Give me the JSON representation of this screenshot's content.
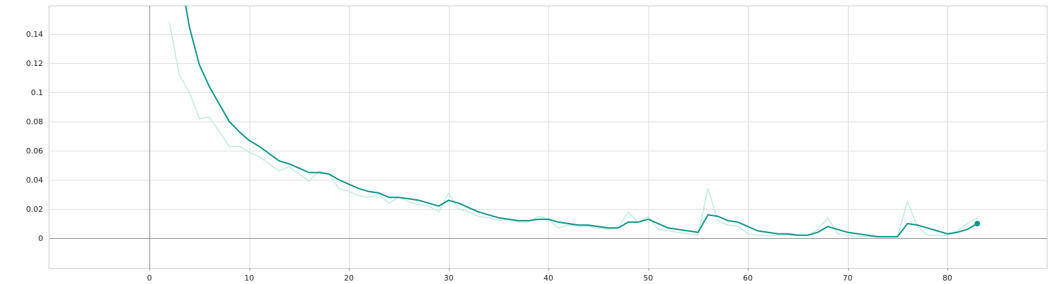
{
  "chart_data": {
    "type": "line",
    "title": "",
    "xlabel": "",
    "ylabel": "",
    "xlim": [
      -10,
      100
    ],
    "ylim": [
      -0.02,
      0.16
    ],
    "x_ticks": [
      0,
      10,
      20,
      30,
      40,
      50,
      60,
      70,
      80
    ],
    "x_tick_labels": [
      "0",
      "10",
      "20",
      "30",
      "40",
      "50",
      "60",
      "70",
      "80"
    ],
    "y_ticks": [
      0,
      0.02,
      0.04,
      0.06,
      0.08,
      0.1,
      0.12,
      0.14
    ],
    "y_tick_labels": [
      "0",
      "0.02",
      "0.04",
      "0.06",
      "0.08",
      "0.1",
      "0.12",
      "0.14"
    ],
    "grid": true,
    "colors": {
      "smoothed": "#0b9484",
      "raw": "#c2ebe3",
      "grid": "#dddddd",
      "zero_axis": "#8c8c8c"
    },
    "series": [
      {
        "role": "raw",
        "x": [
          2,
          3,
          4,
          5,
          6,
          7,
          8,
          9,
          10,
          11,
          12,
          13,
          14,
          15,
          16,
          17,
          18,
          19,
          20,
          21,
          22,
          23,
          24,
          25,
          26,
          27,
          28,
          29,
          30,
          31,
          32,
          33,
          34,
          35,
          36,
          37,
          38,
          39,
          40,
          41,
          42,
          43,
          44,
          45,
          46,
          47,
          48,
          49,
          50,
          51,
          52,
          53,
          54,
          55,
          56,
          57,
          58,
          59,
          60,
          61,
          62,
          63,
          64,
          65,
          66,
          67,
          68,
          69,
          70,
          71,
          72,
          73,
          74,
          75,
          76,
          77,
          78,
          79,
          80,
          81,
          82,
          83
        ],
        "y": [
          0.148,
          0.112,
          0.1,
          0.082,
          0.083,
          0.073,
          0.063,
          0.063,
          0.059,
          0.056,
          0.051,
          0.046,
          0.049,
          0.044,
          0.039,
          0.046,
          0.044,
          0.034,
          0.032,
          0.029,
          0.028,
          0.03,
          0.024,
          0.028,
          0.025,
          0.023,
          0.022,
          0.018,
          0.031,
          0.02,
          0.018,
          0.015,
          0.014,
          0.012,
          0.013,
          0.011,
          0.011,
          0.015,
          0.013,
          0.007,
          0.009,
          0.008,
          0.008,
          0.007,
          0.006,
          0.007,
          0.018,
          0.011,
          0.015,
          0.006,
          0.005,
          0.004,
          0.003,
          0.002,
          0.034,
          0.012,
          0.009,
          0.008,
          0.003,
          0.002,
          0.002,
          0.002,
          0.002,
          0.002,
          0.002,
          0.006,
          0.014,
          0.003,
          0.002,
          0.001,
          0.001,
          0.001,
          0.001,
          0.001,
          0.025,
          0.008,
          0.002,
          0.002,
          0.002,
          0.005,
          0.01,
          0.014
        ]
      },
      {
        "role": "smoothed",
        "x": [
          3.5,
          4,
          5,
          6,
          7,
          8,
          9,
          10,
          11,
          12,
          13,
          14,
          15,
          16,
          17,
          18,
          19,
          20,
          21,
          22,
          23,
          24,
          25,
          26,
          27,
          28,
          29,
          30,
          31,
          32,
          33,
          34,
          35,
          36,
          37,
          38,
          39,
          40,
          41,
          42,
          43,
          44,
          45,
          46,
          47,
          48,
          49,
          50,
          51,
          52,
          53,
          54,
          55,
          56,
          57,
          58,
          59,
          60,
          61,
          62,
          63,
          64,
          65,
          66,
          67,
          68,
          69,
          70,
          71,
          72,
          73,
          74,
          75,
          76,
          77,
          78,
          79,
          80,
          81,
          82,
          83
        ],
        "y": [
          0.165,
          0.145,
          0.119,
          0.104,
          0.092,
          0.08,
          0.073,
          0.067,
          0.063,
          0.058,
          0.053,
          0.051,
          0.048,
          0.045,
          0.045,
          0.044,
          0.04,
          0.037,
          0.034,
          0.032,
          0.031,
          0.028,
          0.028,
          0.027,
          0.026,
          0.024,
          0.022,
          0.026,
          0.024,
          0.021,
          0.018,
          0.016,
          0.014,
          0.013,
          0.012,
          0.012,
          0.013,
          0.013,
          0.011,
          0.01,
          0.009,
          0.009,
          0.008,
          0.007,
          0.007,
          0.011,
          0.011,
          0.013,
          0.01,
          0.007,
          0.006,
          0.005,
          0.004,
          0.016,
          0.015,
          0.012,
          0.011,
          0.008,
          0.005,
          0.004,
          0.003,
          0.003,
          0.002,
          0.002,
          0.004,
          0.008,
          0.006,
          0.004,
          0.003,
          0.002,
          0.001,
          0.001,
          0.001,
          0.01,
          0.009,
          0.007,
          0.005,
          0.003,
          0.004,
          0.006,
          0.01
        ]
      }
    ]
  }
}
